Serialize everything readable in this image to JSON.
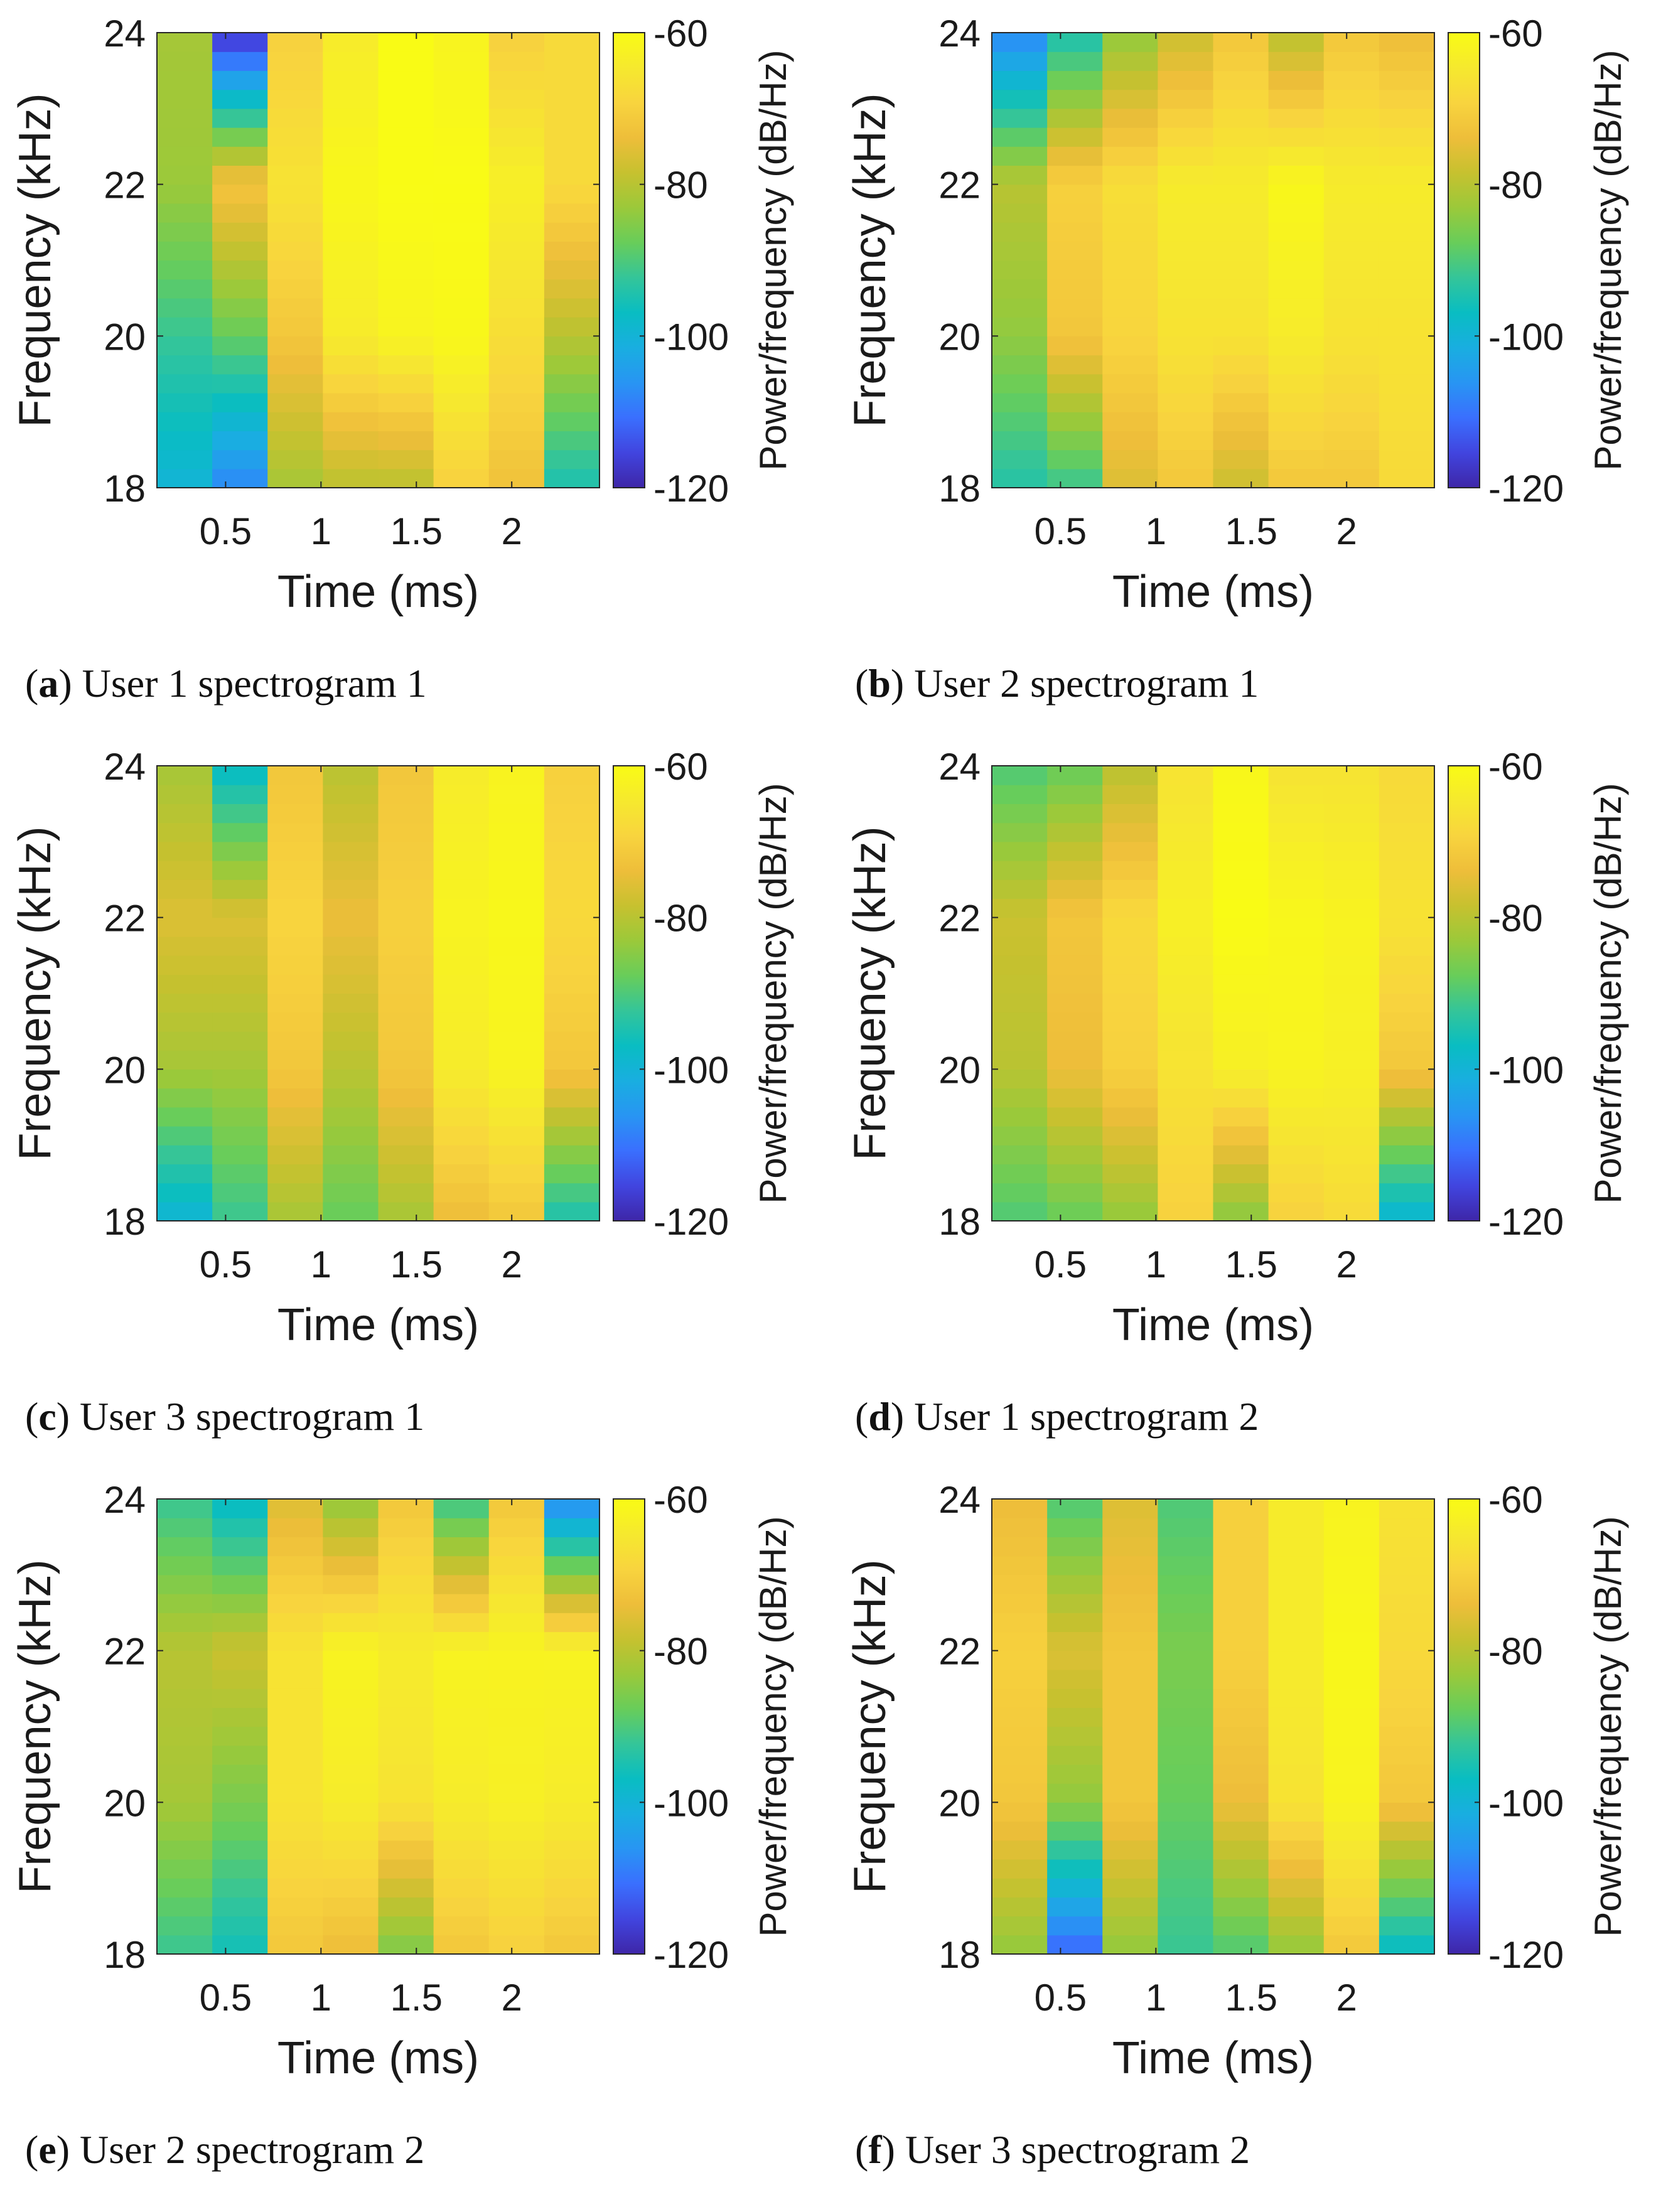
{
  "figure": {
    "colorbar_label": "Power/frequency (dB/Hz)",
    "colormap": [
      "#3e26a8",
      "#4145df",
      "#3a6ffe",
      "#2895f3",
      "#19aee0",
      "#09bdc2",
      "#34c599",
      "#68cd5a",
      "#9bc93a",
      "#c7c12f",
      "#eebe3a",
      "#f8d43e",
      "#f6e92e",
      "#f9fb15"
    ]
  },
  "chart_data": [
    {
      "id": "a",
      "type": "heatmap",
      "caption_letter": "a",
      "caption_text": "User 1 spectrogram 1",
      "xlabel": "Time (ms)",
      "ylabel": "Frequency (kHz)",
      "xticks": [
        0.5,
        1,
        1.5,
        2
      ],
      "xtick_labels": [
        "0.5",
        "1",
        "1.5",
        "2"
      ],
      "yticks": [
        18,
        20,
        22,
        24
      ],
      "ytick_labels": [
        "18",
        "20",
        "22",
        "24"
      ],
      "xlim": [
        0.14,
        2.46
      ],
      "ylim": [
        18,
        24
      ],
      "clim": [
        -120,
        -60
      ],
      "colorbar_ticks": [
        "-60",
        "-80",
        "-100",
        "-120"
      ],
      "x": [
        0.28,
        0.56,
        0.83,
        1.11,
        1.39,
        1.67,
        1.94,
        2.22
      ],
      "y": [
        18,
        20,
        22,
        24
      ],
      "z": [
        [
          -100,
          -108,
          -82,
          -80,
          -80,
          -70,
          -73,
          -95
        ],
        [
          -92,
          -88,
          -72,
          -64,
          -62,
          -61,
          -67,
          -80
        ],
        [
          -83,
          -72,
          -66,
          -61,
          -60,
          -60,
          -63,
          -68
        ],
        [
          -82,
          -118,
          -70,
          -64,
          -60,
          -62,
          -70,
          -68
        ]
      ]
    },
    {
      "id": "b",
      "type": "heatmap",
      "caption_letter": "b",
      "caption_text": "User 2 spectrogram 1",
      "xlabel": "Time (ms)",
      "ylabel": "Frequency (kHz)",
      "xticks": [
        0.5,
        1,
        1.5,
        2
      ],
      "xtick_labels": [
        "0.5",
        "1",
        "1.5",
        "2"
      ],
      "yticks": [
        18,
        20,
        22,
        24
      ],
      "ytick_labels": [
        "18",
        "20",
        "22",
        "24"
      ],
      "xlim": [
        0.14,
        2.46
      ],
      "ylim": [
        18,
        24
      ],
      "clim": [
        -120,
        -60
      ],
      "colorbar_ticks": [
        "-60",
        "-80",
        "-100",
        "-120"
      ],
      "x": [
        0.28,
        0.56,
        0.83,
        1.11,
        1.39,
        1.67,
        1.94,
        2.22
      ],
      "y": [
        18,
        20,
        22,
        24
      ],
      "z": [
        [
          -94,
          -92,
          -76,
          -72,
          -78,
          -72,
          -72,
          -68
        ],
        [
          -84,
          -72,
          -69,
          -66,
          -66,
          -64,
          -66,
          -66
        ],
        [
          -80,
          -70,
          -67,
          -64,
          -64,
          -61,
          -64,
          -64
        ],
        [
          -108,
          -95,
          -84,
          -78,
          -72,
          -80,
          -72,
          -74
        ]
      ]
    },
    {
      "id": "c",
      "type": "heatmap",
      "caption_letter": "c",
      "caption_text": "User 3 spectrogram 1",
      "xlabel": "Time (ms)",
      "ylabel": "Frequency (kHz)",
      "xticks": [
        0.5,
        1,
        1.5,
        2
      ],
      "xtick_labels": [
        "0.5",
        "1",
        "1.5",
        "2"
      ],
      "yticks": [
        18,
        20,
        22,
        24
      ],
      "ytick_labels": [
        "18",
        "20",
        "22",
        "24"
      ],
      "xlim": [
        0.14,
        2.46
      ],
      "ylim": [
        18,
        24
      ],
      "clim": [
        -120,
        -60
      ],
      "colorbar_ticks": [
        "-60",
        "-80",
        "-100",
        "-120"
      ],
      "x": [
        0.28,
        0.56,
        0.83,
        1.11,
        1.39,
        1.67,
        1.94,
        2.22
      ],
      "y": [
        18,
        20,
        22,
        24
      ],
      "z": [
        [
          -100,
          -92,
          -82,
          -88,
          -82,
          -74,
          -72,
          -95
        ],
        [
          -82,
          -82,
          -72,
          -80,
          -72,
          -64,
          -62,
          -72
        ],
        [
          -76,
          -76,
          -69,
          -74,
          -70,
          -62,
          -61,
          -68
        ],
        [
          -82,
          -98,
          -72,
          -80,
          -72,
          -64,
          -62,
          -70
        ]
      ]
    },
    {
      "id": "d",
      "type": "heatmap",
      "caption_letter": "d",
      "caption_text": "User 1 spectrogram 2",
      "xlabel": "Time (ms)",
      "ylabel": "Frequency (kHz)",
      "xticks": [
        0.5,
        1,
        1.5,
        2
      ],
      "xtick_labels": [
        "0.5",
        "1",
        "1.5",
        "2"
      ],
      "yticks": [
        18,
        20,
        22,
        24
      ],
      "ytick_labels": [
        "18",
        "20",
        "22",
        "24"
      ],
      "xlim": [
        0.14,
        2.46
      ],
      "ylim": [
        18,
        24
      ],
      "clim": [
        -120,
        -60
      ],
      "colorbar_ticks": [
        "-60",
        "-80",
        "-100",
        "-120"
      ],
      "x": [
        0.28,
        0.56,
        0.83,
        1.11,
        1.39,
        1.67,
        1.94,
        2.22
      ],
      "y": [
        18,
        20,
        22,
        24
      ],
      "z": [
        [
          -90,
          -88,
          -84,
          -70,
          -85,
          -70,
          -68,
          -100
        ],
        [
          -80,
          -74,
          -70,
          -66,
          -63,
          -62,
          -63,
          -72
        ],
        [
          -78,
          -72,
          -68,
          -63,
          -60,
          -61,
          -62,
          -66
        ],
        [
          -90,
          -88,
          -80,
          -66,
          -61,
          -66,
          -66,
          -68
        ]
      ]
    },
    {
      "id": "e",
      "type": "heatmap",
      "caption_letter": "e",
      "caption_text": "User 2 spectrogram 2",
      "xlabel": "Time (ms)",
      "ylabel": "Frequency (kHz)",
      "xticks": [
        0.5,
        1,
        1.5,
        2
      ],
      "xtick_labels": [
        "0.5",
        "1",
        "1.5",
        "2"
      ],
      "yticks": [
        18,
        20,
        22,
        24
      ],
      "ytick_labels": [
        "18",
        "20",
        "22",
        "24"
      ],
      "xlim": [
        0.14,
        2.46
      ],
      "ylim": [
        18,
        24
      ],
      "clim": [
        -120,
        -60
      ],
      "colorbar_ticks": [
        "-60",
        "-80",
        "-100",
        "-120"
      ],
      "x": [
        0.28,
        0.56,
        0.83,
        1.11,
        1.39,
        1.67,
        1.94,
        2.22
      ],
      "y": [
        18,
        20,
        22,
        24
      ],
      "z": [
        [
          -92,
          -96,
          -72,
          -74,
          -86,
          -72,
          -70,
          -72
        ],
        [
          -82,
          -86,
          -66,
          -64,
          -66,
          -64,
          -63,
          -64
        ],
        [
          -80,
          -78,
          -66,
          -62,
          -64,
          -62,
          -62,
          -62
        ],
        [
          -92,
          -98,
          -76,
          -84,
          -72,
          -92,
          -72,
          -108
        ]
      ]
    },
    {
      "id": "f",
      "type": "heatmap",
      "caption_letter": "f",
      "caption_text": "User 3 spectrogram 2",
      "xlabel": "Time (ms)",
      "ylabel": "Frequency (kHz)",
      "xticks": [
        0.5,
        1,
        1.5,
        2
      ],
      "xtick_labels": [
        "0.5",
        "1",
        "1.5",
        "2"
      ],
      "yticks": [
        18,
        20,
        22,
        24
      ],
      "ytick_labels": [
        "18",
        "20",
        "22",
        "24"
      ],
      "xlim": [
        0.14,
        2.46
      ],
      "ylim": [
        18,
        24
      ],
      "clim": [
        -120,
        -60
      ],
      "colorbar_ticks": [
        "-60",
        "-80",
        "-100",
        "-120"
      ],
      "x": [
        0.28,
        0.56,
        0.83,
        1.11,
        1.39,
        1.67,
        1.94,
        2.22
      ],
      "y": [
        18,
        20,
        22,
        24
      ],
      "z": [
        [
          -84,
          -112,
          -84,
          -92,
          -90,
          -84,
          -72,
          -98
        ],
        [
          -72,
          -84,
          -72,
          -88,
          -74,
          -66,
          -62,
          -72
        ],
        [
          -70,
          -76,
          -72,
          -86,
          -70,
          -64,
          -61,
          -68
        ],
        [
          -74,
          -90,
          -76,
          -90,
          -70,
          -64,
          -62,
          -66
        ]
      ]
    }
  ]
}
